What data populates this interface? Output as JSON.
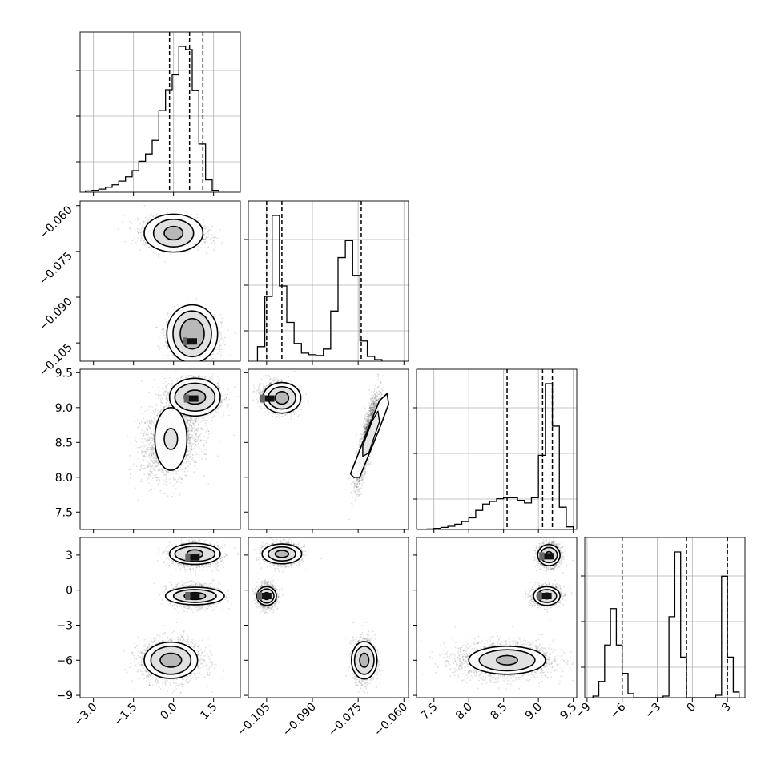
{
  "chart_data": {
    "type": "corner",
    "title": "",
    "parameters": [
      {
        "index": 0,
        "range": [
          -3.5,
          2.5
        ],
        "ticks": [
          -3.0,
          -1.5,
          0.0,
          1.5
        ],
        "tick_labels": [
          "−3.0",
          "−1.5",
          "0.0",
          "1.5"
        ],
        "quantiles": [
          -0.15,
          0.6,
          1.1
        ]
      },
      {
        "index": 1,
        "range": [
          -0.111,
          -0.0585
        ],
        "ticks": [
          -0.105,
          -0.09,
          -0.075,
          -0.06
        ],
        "tick_labels": [
          "−0.105",
          "−0.090",
          "−0.075",
          "−0.060"
        ],
        "quantiles": [
          -0.105,
          -0.1,
          -0.074
        ]
      },
      {
        "index": 2,
        "range": [
          7.25,
          9.55
        ],
        "ticks": [
          7.5,
          8.0,
          8.5,
          9.0,
          9.5
        ],
        "tick_labels": [
          "7.5",
          "8.0",
          "8.5",
          "9.0",
          "9.5"
        ],
        "quantiles": [
          8.55,
          9.06,
          9.2
        ]
      },
      {
        "index": 3,
        "range": [
          -9.2,
          4.5
        ],
        "ticks": [
          -9,
          -6,
          -3,
          0,
          3
        ],
        "tick_labels": [
          "−9",
          "−6",
          "−3",
          "0",
          "3"
        ],
        "quantiles": [
          -6.0,
          -0.5,
          3.0
        ]
      }
    ],
    "histograms": [
      {
        "param": 0,
        "edges_start": -3.3,
        "bin_width": 0.25,
        "counts": [
          2,
          3,
          5,
          8,
          12,
          18,
          25,
          35,
          50,
          62,
          84,
          132,
          166,
          190,
          236,
          231,
          165,
          78,
          20,
          3
        ]
      },
      {
        "param": 1,
        "edges_start": -0.108,
        "bin_width": 0.0024,
        "counts": [
          18,
          80,
          180,
          93,
          48,
          22,
          10,
          8,
          7,
          15,
          62,
          128,
          149,
          106,
          25,
          6,
          2
        ]
      },
      {
        "param": 2,
        "edges_start": 7.4,
        "bin_width": 0.1,
        "counts": [
          1,
          2,
          4,
          6,
          10,
          15,
          22,
          36,
          48,
          53,
          58,
          60,
          60,
          55,
          50,
          60,
          140,
          275,
          195,
          42,
          5
        ]
      },
      {
        "param": 3,
        "edges_start": -8.5,
        "bin_width": 0.5,
        "counts": [
          2,
          20,
          65,
          110,
          65,
          30,
          5,
          0,
          0,
          0,
          0,
          0,
          2,
          100,
          180,
          50,
          0,
          0,
          0,
          0,
          0,
          3,
          150,
          50,
          7
        ]
      }
    ],
    "blobs": [
      {
        "px": 0,
        "py": 1,
        "cx": 0.0,
        "cy": -0.069,
        "sx": 0.55,
        "sy": 0.0024,
        "rho": -0.1,
        "n": 2200
      },
      {
        "px": 0,
        "py": 1,
        "cx": 0.7,
        "cy": -0.103,
        "sx": 0.45,
        "sy": 0.0035,
        "rho": 0.0,
        "n": 2600
      },
      {
        "px": 0,
        "py": 2,
        "cx": 0.8,
        "cy": 9.15,
        "sx": 0.45,
        "sy": 0.12,
        "rho": 0.0,
        "n": 2400
      },
      {
        "px": 0,
        "py": 2,
        "cx": -0.1,
        "cy": 8.55,
        "sx": 0.55,
        "sy": 0.28,
        "rho": 0.25,
        "n": 2200
      },
      {
        "px": 0,
        "py": 3,
        "cx": 0.8,
        "cy": 3.0,
        "sx": 0.45,
        "sy": 0.5,
        "rho": 0.0,
        "n": 1600
      },
      {
        "px": 0,
        "py": 3,
        "cx": 0.8,
        "cy": -0.5,
        "sx": 0.45,
        "sy": 0.5,
        "rho": 0.0,
        "n": 1600
      },
      {
        "px": 0,
        "py": 3,
        "cx": -0.1,
        "cy": -6.0,
        "sx": 0.6,
        "sy": 0.9,
        "rho": 0.0,
        "n": 1800
      },
      {
        "px": 1,
        "py": 2,
        "cx": -0.101,
        "cy": 9.14,
        "sx": 0.0027,
        "sy": 0.1,
        "rho": -0.2,
        "n": 2200
      },
      {
        "px": 1,
        "py": 2,
        "cx": -0.072,
        "cy": 8.55,
        "sx": 0.0018,
        "sy": 0.32,
        "rho": 0.85,
        "n": 2200
      },
      {
        "px": 1,
        "py": 3,
        "cx": -0.1,
        "cy": 3.1,
        "sx": 0.003,
        "sy": 0.45,
        "rho": 0.0,
        "n": 1600
      },
      {
        "px": 1,
        "py": 3,
        "cx": -0.105,
        "cy": -0.5,
        "sx": 0.0015,
        "sy": 0.5,
        "rho": 0.0,
        "n": 1600
      },
      {
        "px": 1,
        "py": 3,
        "cx": -0.073,
        "cy": -6.0,
        "sx": 0.0018,
        "sy": 0.9,
        "rho": 0.0,
        "n": 1800
      },
      {
        "px": 2,
        "py": 3,
        "cx": 9.15,
        "cy": 3.0,
        "sx": 0.08,
        "sy": 0.5,
        "rho": 0.0,
        "n": 1400
      },
      {
        "px": 2,
        "py": 3,
        "cx": 9.12,
        "cy": -0.5,
        "sx": 0.1,
        "sy": 0.4,
        "rho": 0.1,
        "n": 1400
      },
      {
        "px": 2,
        "py": 3,
        "cx": 8.5,
        "cy": -6.0,
        "sx": 0.35,
        "sy": 0.8,
        "rho": 0.0,
        "n": 2200
      }
    ],
    "contours": [
      {
        "px": 0,
        "py": 1,
        "cx": 0.0,
        "cy": -0.069,
        "rx": [
          1.1,
          0.75,
          0.35
        ],
        "ry": [
          0.0062,
          0.0045,
          0.0022
        ],
        "rot": 0
      },
      {
        "px": 0,
        "py": 1,
        "cx": 0.7,
        "cy": -0.102,
        "rx": [
          0.95,
          0.72,
          0.45
        ],
        "ry": [
          0.0095,
          0.0075,
          0.005
        ],
        "rot": 0
      },
      {
        "px": 0,
        "py": 2,
        "cx": 0.8,
        "cy": 9.15,
        "rx": [
          0.95,
          0.75,
          0.4
        ],
        "ry": [
          0.27,
          0.2,
          0.1
        ],
        "rot": 0
      },
      {
        "px": 0,
        "py": 2,
        "cx": -0.1,
        "cy": 8.55,
        "rx": [
          0.6,
          0.25
        ],
        "ry": [
          0.45,
          0.15
        ],
        "rot": 0
      },
      {
        "px": 0,
        "py": 3,
        "cx": 0.8,
        "cy": 3.1,
        "rx": [
          0.95,
          0.75,
          0.3
        ],
        "ry": [
          0.9,
          0.65,
          0.35
        ],
        "rot": 0
      },
      {
        "px": 0,
        "py": 3,
        "cx": 0.8,
        "cy": -0.5,
        "rx": [
          1.1,
          0.8,
          0.4
        ],
        "ry": [
          0.75,
          0.55,
          0.3
        ],
        "rot": 0
      },
      {
        "px": 0,
        "py": 3,
        "cx": -0.1,
        "cy": -6.0,
        "rx": [
          1.0,
          0.75,
          0.4
        ],
        "ry": [
          1.55,
          1.2,
          0.6
        ],
        "rot": 0
      },
      {
        "px": 1,
        "py": 2,
        "cx": -0.1,
        "cy": 9.14,
        "rx": [
          0.0062,
          0.0045,
          0.0022
        ],
        "ry": [
          0.22,
          0.16,
          0.09
        ],
        "rot": 0
      },
      {
        "px": 1,
        "py": 3,
        "cx": -0.1,
        "cy": 3.1,
        "rx": [
          0.0065,
          0.0045,
          0.0022
        ],
        "ry": [
          0.85,
          0.6,
          0.3
        ],
        "rot": 0
      },
      {
        "px": 1,
        "py": 3,
        "cx": -0.105,
        "cy": -0.5,
        "rx": [
          0.0032,
          0.0024,
          0.0012
        ],
        "ry": [
          0.8,
          0.6,
          0.3
        ],
        "rot": 0
      },
      {
        "px": 1,
        "py": 3,
        "cx": -0.073,
        "cy": -6.0,
        "rx": [
          0.0042,
          0.0032,
          0.0015
        ],
        "ry": [
          1.6,
          1.2,
          0.6
        ],
        "rot": 0
      },
      {
        "px": 2,
        "py": 3,
        "cx": 9.15,
        "cy": 3.0,
        "rx": [
          0.16,
          0.12,
          0.05
        ],
        "ry": [
          0.9,
          0.65,
          0.3
        ],
        "rot": 0
      },
      {
        "px": 2,
        "py": 3,
        "cx": 9.12,
        "cy": -0.5,
        "rx": [
          0.19,
          0.14,
          0.06
        ],
        "ry": [
          0.8,
          0.55,
          0.25
        ],
        "rot": 0
      },
      {
        "px": 2,
        "py": 3,
        "cx": 8.55,
        "cy": -6.0,
        "rx": [
          0.55,
          0.4,
          0.15
        ],
        "ry": [
          1.2,
          0.9,
          0.4
        ],
        "rot": 0
      }
    ],
    "tilted_contour": {
      "px": 1,
      "py": 2,
      "points": [
        [
          -0.0765,
          8.0
        ],
        [
          -0.0745,
          8.0
        ],
        [
          -0.068,
          8.7
        ],
        [
          -0.065,
          9.05
        ],
        [
          -0.0655,
          9.2
        ],
        [
          -0.068,
          9.1
        ],
        [
          -0.0735,
          8.5
        ],
        [
          -0.0775,
          8.05
        ]
      ],
      "inner": [
        [
          -0.0735,
          8.3
        ],
        [
          -0.0715,
          8.35
        ],
        [
          -0.068,
          8.8
        ],
        [
          -0.0685,
          8.95
        ],
        [
          -0.0705,
          8.8
        ],
        [
          -0.0735,
          8.45
        ]
      ]
    },
    "peak_pixels": [
      {
        "px": 0,
        "py": 1,
        "x": 0.7,
        "y": -0.1045
      },
      {
        "px": 0,
        "py": 2,
        "x": 0.75,
        "y": 9.13
      },
      {
        "px": 0,
        "py": 3,
        "x": 0.8,
        "y": 2.8
      },
      {
        "px": 0,
        "py": 3,
        "x": 0.8,
        "y": -0.5
      },
      {
        "px": 1,
        "py": 2,
        "x": -0.104,
        "y": 9.13
      },
      {
        "px": 1,
        "py": 3,
        "x": -0.105,
        "y": -0.5
      },
      {
        "px": 2,
        "py": 3,
        "x": 9.12,
        "y": -0.5
      },
      {
        "px": 2,
        "py": 3,
        "x": 9.15,
        "y": 2.9
      }
    ],
    "grid": true,
    "colors": {
      "line": "#000000",
      "grid": "#b0b0b0",
      "points": "#000000",
      "background": "#ffffff"
    }
  }
}
